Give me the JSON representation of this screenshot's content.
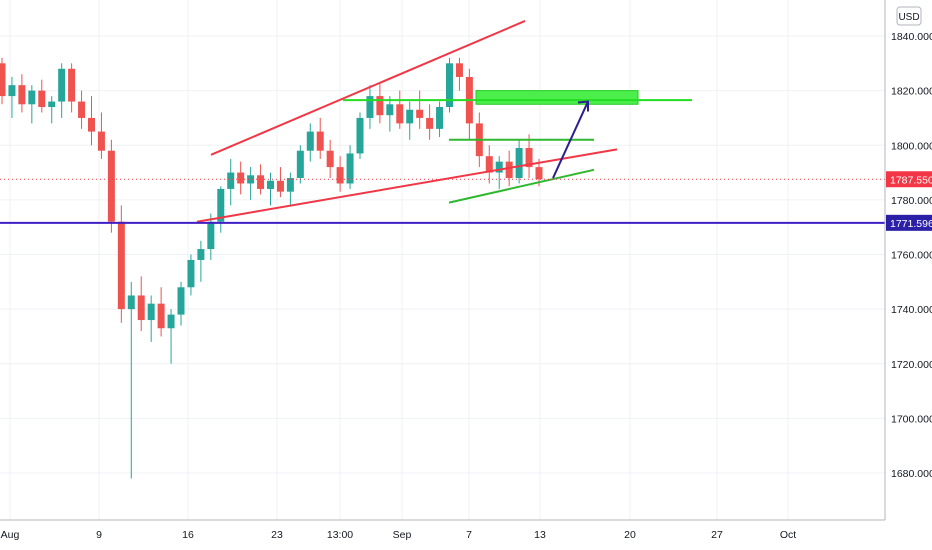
{
  "currency": "USD",
  "price_axis": {
    "labels": [
      "1840.000",
      "1820.000",
      "1800.000",
      "1780.000",
      "1760.000",
      "1740.000",
      "1720.000",
      "1700.000",
      "1680.000"
    ]
  },
  "time_axis": {
    "labels": [
      "Aug",
      "9",
      "16",
      "23",
      "13:00",
      "Sep",
      "7",
      "13",
      "20",
      "27",
      "Oct"
    ]
  },
  "price_tags": [
    {
      "label": "1787.550",
      "value": 1787.55,
      "color": "#f23645"
    },
    {
      "label": "1771.596",
      "value": 1771.596,
      "color": "#2a1fa6"
    }
  ],
  "colors": {
    "up": "#26a69a",
    "down": "#ef5350",
    "wedge": "#f23645",
    "green_level": "#22dd22",
    "zone_fill": "#4cee4c",
    "arrow": "#2a1f8f",
    "support": "#3f1fc4",
    "grid": "#eef1f5"
  },
  "chart_data": {
    "type": "candlestick",
    "symbol_currency": "USD",
    "y_axis_ticks": [
      1840,
      1820,
      1800,
      1780,
      1760,
      1740,
      1720,
      1700,
      1680
    ],
    "y_range": [
      1670,
      1852
    ],
    "x_ticks": [
      "Aug",
      "9",
      "16",
      "23",
      "13:00",
      "Sep",
      "7",
      "13",
      "20",
      "27",
      "Oct"
    ],
    "last_price": 1787.55,
    "horizontal_level": 1771.596,
    "candles_ohlc": [
      [
        1830,
        1832,
        1815,
        1818
      ],
      [
        1818,
        1825,
        1810,
        1822
      ],
      [
        1822,
        1826,
        1812,
        1815
      ],
      [
        1815,
        1822,
        1808,
        1820
      ],
      [
        1820,
        1824,
        1812,
        1814
      ],
      [
        1814,
        1818,
        1808,
        1816
      ],
      [
        1816,
        1830,
        1810,
        1828
      ],
      [
        1828,
        1830,
        1812,
        1816
      ],
      [
        1816,
        1820,
        1806,
        1810
      ],
      [
        1810,
        1818,
        1800,
        1805
      ],
      [
        1805,
        1812,
        1795,
        1798
      ],
      [
        1798,
        1802,
        1768,
        1772
      ],
      [
        1772,
        1778,
        1735,
        1740
      ],
      [
        1740,
        1750,
        1678,
        1745
      ],
      [
        1745,
        1752,
        1732,
        1736
      ],
      [
        1736,
        1745,
        1728,
        1742
      ],
      [
        1742,
        1748,
        1730,
        1733
      ],
      [
        1733,
        1740,
        1720,
        1738
      ],
      [
        1738,
        1750,
        1734,
        1748
      ],
      [
        1748,
        1760,
        1745,
        1758
      ],
      [
        1758,
        1765,
        1750,
        1762
      ],
      [
        1762,
        1775,
        1758,
        1772
      ],
      [
        1772,
        1785,
        1768,
        1784
      ],
      [
        1784,
        1795,
        1778,
        1790
      ],
      [
        1790,
        1794,
        1782,
        1786
      ],
      [
        1786,
        1792,
        1780,
        1789
      ],
      [
        1789,
        1793,
        1782,
        1784
      ],
      [
        1784,
        1790,
        1778,
        1787
      ],
      [
        1787,
        1792,
        1781,
        1783
      ],
      [
        1783,
        1790,
        1778,
        1788
      ],
      [
        1788,
        1800,
        1786,
        1798
      ],
      [
        1798,
        1808,
        1794,
        1805
      ],
      [
        1805,
        1810,
        1795,
        1798
      ],
      [
        1798,
        1802,
        1788,
        1792
      ],
      [
        1792,
        1796,
        1783,
        1786
      ],
      [
        1786,
        1800,
        1784,
        1797
      ],
      [
        1797,
        1812,
        1795,
        1810
      ],
      [
        1810,
        1822,
        1806,
        1818
      ],
      [
        1818,
        1823,
        1808,
        1811
      ],
      [
        1811,
        1818,
        1805,
        1815
      ],
      [
        1815,
        1820,
        1806,
        1808
      ],
      [
        1808,
        1816,
        1802,
        1813
      ],
      [
        1813,
        1820,
        1806,
        1810
      ],
      [
        1810,
        1815,
        1802,
        1806
      ],
      [
        1806,
        1816,
        1803,
        1814
      ],
      [
        1814,
        1832,
        1812,
        1830
      ],
      [
        1830,
        1832,
        1820,
        1825
      ],
      [
        1825,
        1828,
        1802,
        1808
      ],
      [
        1808,
        1812,
        1792,
        1796
      ],
      [
        1796,
        1800,
        1786,
        1790
      ],
      [
        1790,
        1796,
        1784,
        1794
      ],
      [
        1794,
        1798,
        1785,
        1788
      ],
      [
        1788,
        1802,
        1786,
        1799
      ],
      [
        1799,
        1804,
        1788,
        1792
      ],
      [
        1792,
        1795,
        1785,
        1787.55
      ]
    ]
  },
  "annotations": {
    "wedge_upper": "rising resistance line",
    "wedge_lower": "rising support line",
    "resistance_zone": [
      1815,
      1820
    ],
    "upper_green_level": 1816.5,
    "mid_green_level": 1802,
    "lower_green_line": "rising support",
    "arrow_target": 1816
  }
}
